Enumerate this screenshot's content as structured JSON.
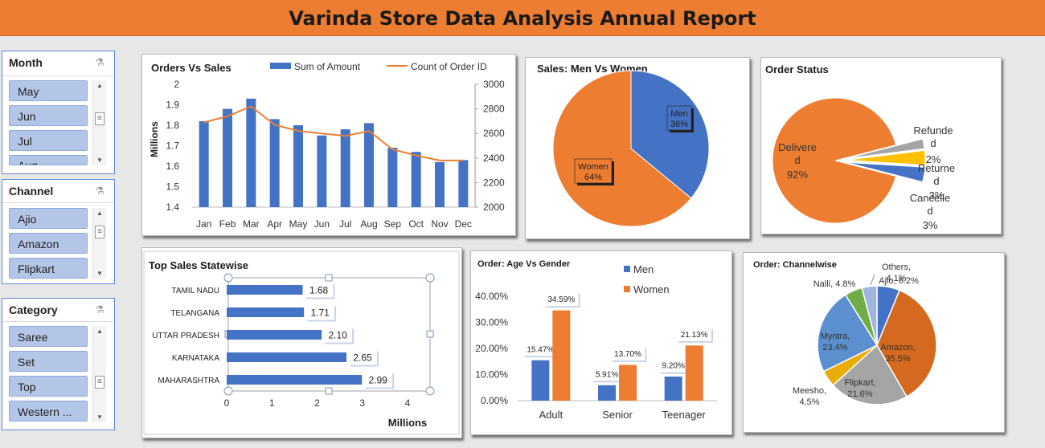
{
  "header": {
    "title": "Varinda Store Data Analysis Annual Report"
  },
  "colors": {
    "blue": "#4472c4",
    "orange": "#ed7d31",
    "gray": "#a5a5a5",
    "yellow": "#ffc000",
    "header": "#ed7d31",
    "slicer_item": "#b4c6e7"
  },
  "slicers": [
    {
      "title": "Month",
      "clear_icon": "filter-clear-icon",
      "items": [
        "May",
        "Jun",
        "Jul",
        "Aug"
      ]
    },
    {
      "title": "Channel",
      "clear_icon": "filter-clear-icon",
      "items": [
        "Ajio",
        "Amazon",
        "Flipkart"
      ]
    },
    {
      "title": "Category",
      "clear_icon": "filter-clear-icon",
      "items": [
        "Saree",
        "Set",
        "Top",
        "Western ..."
      ]
    }
  ],
  "chart_data": [
    {
      "id": "orders-vs-sales",
      "type": "bar",
      "title": "Orders Vs Sales",
      "categories": [
        "Jan",
        "Feb",
        "Mar",
        "Apr",
        "May",
        "Jun",
        "Jul",
        "Aug",
        "Sep",
        "Oct",
        "Nov",
        "Dec"
      ],
      "series": [
        {
          "name": "Sum of Amount",
          "type": "bar",
          "axis": "left",
          "values": [
            1.82,
            1.88,
            1.93,
            1.83,
            1.8,
            1.75,
            1.78,
            1.81,
            1.69,
            1.67,
            1.62,
            1.63
          ]
        },
        {
          "name": "Count of Order ID",
          "type": "line",
          "axis": "right",
          "values": [
            2690,
            2740,
            2820,
            2670,
            2620,
            2600,
            2580,
            2620,
            2470,
            2420,
            2380,
            2380
          ]
        }
      ],
      "ylabel": "Millions",
      "ylim": [
        1.4,
        2
      ],
      "yticks": [
        "1.4",
        "1.5",
        "1.6",
        "1.7",
        "1.8",
        "1.9",
        "2"
      ],
      "y2lim": [
        2000,
        3000
      ],
      "y2ticks": [
        "2000",
        "2200",
        "2400",
        "2600",
        "2800",
        "3000"
      ],
      "legend": "top"
    },
    {
      "id": "sales-men-women",
      "type": "pie",
      "title": "Sales: Men Vs Women",
      "slices": [
        {
          "label": "Men",
          "value": 36,
          "pct_label": "36%",
          "color": "#4472c4"
        },
        {
          "label": "Women",
          "value": 64,
          "pct_label": "64%",
          "color": "#ed7d31"
        }
      ]
    },
    {
      "id": "order-status",
      "type": "pie",
      "title": "Order Status",
      "slices": [
        {
          "label": "Delivered",
          "value": 92,
          "pct_label": "92%",
          "color": "#ed7d31"
        },
        {
          "label": "Refunded",
          "value": 2,
          "pct_label": "2%",
          "color": "#a5a5a5"
        },
        {
          "label": "Returned",
          "value": 3,
          "pct_label": "3%",
          "color": "#ffc000"
        },
        {
          "label": "Cancelled",
          "value": 3,
          "pct_label": "3%",
          "color": "#4472c4"
        }
      ]
    },
    {
      "id": "top-sales-statewise",
      "type": "bar",
      "orientation": "horizontal",
      "title": "Top Sales Statewise",
      "categories": [
        "TAMIL NADU",
        "TELANGANA",
        "UTTAR PRADESH",
        "KARNATAKA",
        "MAHARASHTRA"
      ],
      "values": [
        1.68,
        1.71,
        2.1,
        2.65,
        2.99
      ],
      "value_labels": [
        "1.68",
        "1.71",
        "2.10",
        "2.65",
        "2.99"
      ],
      "xlabel": "Millions",
      "xlim": [
        0,
        4
      ],
      "xticks": [
        "0",
        "1",
        "2",
        "3",
        "4"
      ]
    },
    {
      "id": "age-vs-gender",
      "type": "bar",
      "title": "Order: Age Vs Gender",
      "categories": [
        "Adult",
        "Senior",
        "Teenager"
      ],
      "series": [
        {
          "name": "Men",
          "values": [
            15.47,
            5.91,
            9.2
          ],
          "labels": [
            "15.47%",
            "5.91%",
            "9.20%"
          ],
          "color": "#4472c4"
        },
        {
          "name": "Women",
          "values": [
            34.59,
            13.7,
            21.13
          ],
          "labels": [
            "34.59%",
            "13.70%",
            "21.13%"
          ],
          "color": "#ed7d31"
        }
      ],
      "ylim": [
        0,
        40
      ],
      "yticks": [
        "0.00%",
        "10.00%",
        "20.00%",
        "30.00%",
        "40.00%"
      ],
      "legend": "top-right"
    },
    {
      "id": "channelwise",
      "type": "pie",
      "title": "Order: Channelwise",
      "slices": [
        {
          "label": "Ajio",
          "value": 6.2,
          "pct_label": "6.2%",
          "color": "#4472c4"
        },
        {
          "label": "Amazon",
          "value": 35.5,
          "pct_label": "35.5%",
          "color": "#d4691f"
        },
        {
          "label": "Flipkart",
          "value": 21.6,
          "pct_label": "21.6%",
          "color": "#a5a5a5"
        },
        {
          "label": "Meesho",
          "value": 4.5,
          "pct_label": "4.5%",
          "color": "#e8ad09"
        },
        {
          "label": "Myntra",
          "value": 23.4,
          "pct_label": "23.4%",
          "color": "#5b8fcf"
        },
        {
          "label": "Nalli",
          "value": 4.8,
          "pct_label": "4.8%",
          "color": "#70ad47"
        },
        {
          "label": "Others",
          "value": 4.1,
          "pct_label": "4.1%",
          "color": "#a2b5e0"
        }
      ]
    }
  ]
}
